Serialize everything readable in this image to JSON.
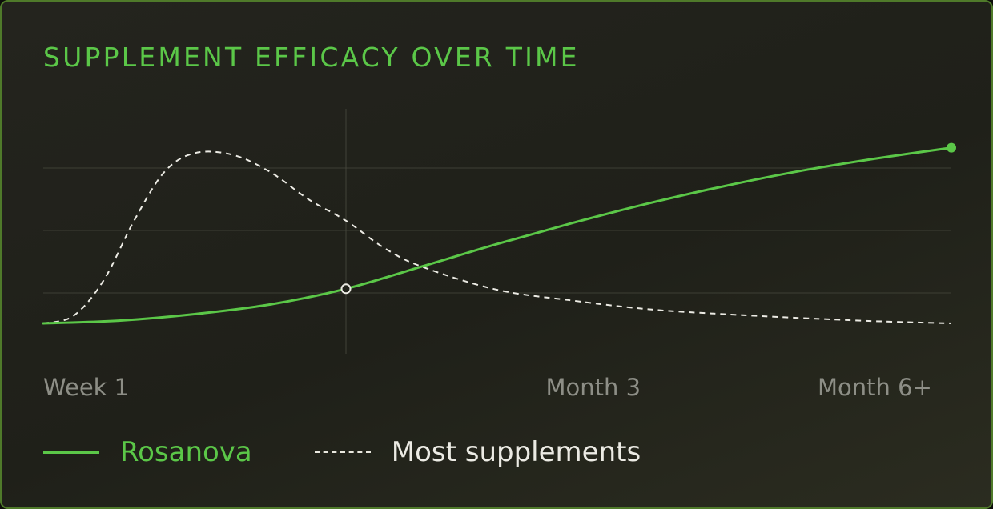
{
  "title": "SUPPLEMENT EFFICACY OVER TIME",
  "colors": {
    "accent": "#5bc748",
    "comparison": "#ecebe4",
    "tick_text": "#8d8e86",
    "grid": "#4a4b40",
    "border": "#4f7a2a"
  },
  "chart_data": {
    "type": "line",
    "title": "SUPPLEMENT EFFICACY OVER TIME",
    "xlabel": "",
    "ylabel": "",
    "x_tick_labels": [
      {
        "label": "Week 1",
        "x": 0
      },
      {
        "label": "Month 3",
        "x": 3
      },
      {
        "label": "Month 6+",
        "x": 6
      }
    ],
    "xlim": [
      0,
      6
    ],
    "ylim": [
      0,
      4
    ],
    "grid": "horizontal",
    "legend_position": "bottom-left",
    "marker_x": 2,
    "series": [
      {
        "name": "Rosanova",
        "style": "solid",
        "end_marker": true,
        "x": [
          0,
          0.5,
          1,
          1.5,
          2,
          2.5,
          3,
          3.5,
          4,
          4.5,
          5,
          5.5,
          6
        ],
        "y": [
          0,
          0.05,
          0.17,
          0.35,
          0.64,
          1.05,
          1.47,
          1.86,
          2.22,
          2.54,
          2.82,
          3.05,
          3.25
        ]
      },
      {
        "name": "Most supplements",
        "style": "dashed",
        "x": [
          0,
          0.2,
          0.4,
          0.6,
          0.8,
          1,
          1.25,
          1.5,
          1.75,
          2,
          2.25,
          2.5,
          3,
          3.5,
          4,
          4.5,
          5,
          5.5,
          6
        ],
        "y": [
          0,
          0.14,
          0.8,
          1.9,
          2.8,
          3.15,
          3.12,
          2.8,
          2.3,
          1.9,
          1.4,
          1.05,
          0.62,
          0.42,
          0.26,
          0.17,
          0.1,
          0.04,
          0
        ]
      }
    ]
  }
}
